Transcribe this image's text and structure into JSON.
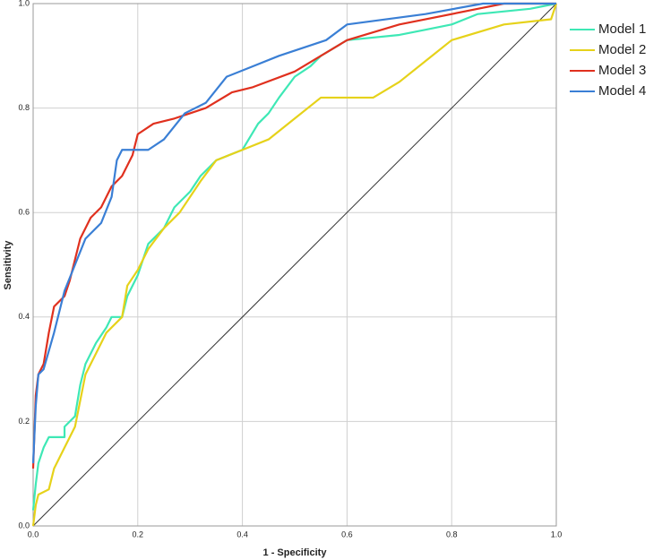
{
  "chart_data": {
    "type": "line",
    "xlabel": "1 - Specificity",
    "ylabel": "Sensitivity",
    "xlim": [
      0,
      1
    ],
    "ylim": [
      0,
      1
    ],
    "xticks": [
      {
        "value": 0,
        "label": "0.0"
      },
      0.2,
      0.4,
      0.6,
      0.8,
      {
        "value": 1,
        "label": "1.0"
      }
    ],
    "yticks": [
      {
        "value": 0,
        "label": "0.0"
      },
      0.2,
      0.4,
      0.6,
      0.8,
      {
        "value": 1,
        "label": "1.0"
      }
    ],
    "grid": true,
    "reference_line": true,
    "legend": "right",
    "series": [
      {
        "name": "Model 1",
        "color": "#3ee8b5",
        "x": [
          0,
          0.005,
          0.01,
          0.02,
          0.03,
          0.06,
          0.06,
          0.08,
          0.09,
          0.1,
          0.12,
          0.14,
          0.15,
          0.17,
          0.18,
          0.2,
          0.22,
          0.25,
          0.27,
          0.3,
          0.32,
          0.35,
          0.4,
          0.43,
          0.45,
          0.47,
          0.5,
          0.53,
          0.55,
          0.6,
          0.7,
          0.75,
          0.8,
          0.85,
          0.95,
          1
        ],
        "values": [
          0.03,
          0.08,
          0.12,
          0.15,
          0.17,
          0.17,
          0.19,
          0.21,
          0.27,
          0.31,
          0.35,
          0.38,
          0.4,
          0.4,
          0.44,
          0.48,
          0.54,
          0.57,
          0.61,
          0.64,
          0.67,
          0.7,
          0.72,
          0.77,
          0.79,
          0.82,
          0.86,
          0.88,
          0.9,
          0.93,
          0.94,
          0.95,
          0.96,
          0.98,
          0.99,
          1
        ]
      },
      {
        "name": "Model 2",
        "color": "#e6d21a",
        "x": [
          0,
          0.005,
          0.01,
          0.03,
          0.04,
          0.06,
          0.08,
          0.1,
          0.12,
          0.14,
          0.17,
          0.18,
          0.2,
          0.22,
          0.25,
          0.28,
          0.32,
          0.35,
          0.4,
          0.45,
          0.5,
          0.55,
          0.65,
          0.7,
          0.75,
          0.8,
          0.9,
          0.99,
          1
        ],
        "values": [
          0,
          0.04,
          0.06,
          0.07,
          0.11,
          0.15,
          0.19,
          0.29,
          0.33,
          0.37,
          0.4,
          0.46,
          0.49,
          0.53,
          0.57,
          0.6,
          0.66,
          0.7,
          0.72,
          0.74,
          0.78,
          0.82,
          0.82,
          0.85,
          0.89,
          0.93,
          0.96,
          0.97,
          1
        ]
      },
      {
        "name": "Model 3",
        "color": "#e0301e",
        "x": [
          0,
          0.005,
          0.01,
          0.02,
          0.03,
          0.04,
          0.06,
          0.07,
          0.09,
          0.11,
          0.13,
          0.15,
          0.17,
          0.19,
          0.2,
          0.23,
          0.27,
          0.3,
          0.33,
          0.38,
          0.42,
          0.5,
          0.55,
          0.6,
          0.7,
          0.85,
          0.9,
          1
        ],
        "values": [
          0.11,
          0.25,
          0.29,
          0.31,
          0.37,
          0.42,
          0.44,
          0.47,
          0.55,
          0.59,
          0.61,
          0.65,
          0.67,
          0.71,
          0.75,
          0.77,
          0.78,
          0.79,
          0.8,
          0.83,
          0.84,
          0.87,
          0.9,
          0.93,
          0.96,
          0.99,
          1,
          1
        ]
      },
      {
        "name": "Model 4",
        "color": "#3a7fd5",
        "x": [
          0,
          0.005,
          0.01,
          0.02,
          0.04,
          0.06,
          0.08,
          0.1,
          0.13,
          0.15,
          0.16,
          0.17,
          0.22,
          0.25,
          0.29,
          0.33,
          0.37,
          0.42,
          0.47,
          0.56,
          0.6,
          0.75,
          0.86,
          1
        ],
        "values": [
          0.12,
          0.23,
          0.29,
          0.3,
          0.37,
          0.45,
          0.5,
          0.55,
          0.58,
          0.63,
          0.7,
          0.72,
          0.72,
          0.74,
          0.79,
          0.81,
          0.86,
          0.88,
          0.9,
          0.93,
          0.96,
          0.98,
          1,
          1
        ]
      }
    ]
  }
}
